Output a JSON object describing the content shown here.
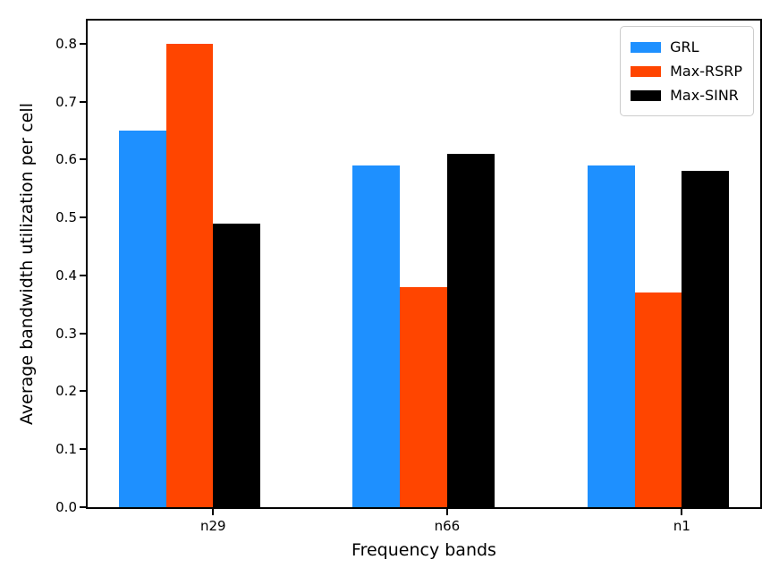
{
  "chart_data": {
    "type": "bar",
    "title": "",
    "xlabel": "Frequency bands",
    "ylabel": "Average bandwidth utilization per cell",
    "categories": [
      "n29",
      "n66",
      "n1"
    ],
    "series": [
      {
        "name": "GRL",
        "color": "#1E90FF",
        "values": [
          0.65,
          0.59,
          0.59
        ]
      },
      {
        "name": "Max-RSRP",
        "color": "#FF4500",
        "values": [
          0.8,
          0.38,
          0.37
        ]
      },
      {
        "name": "Max-SINR",
        "color": "#000000",
        "values": [
          0.49,
          0.61,
          0.58
        ]
      }
    ],
    "yticks": [
      0.0,
      0.1,
      0.2,
      0.3,
      0.4,
      0.5,
      0.6,
      0.7,
      0.8
    ],
    "ylim": [
      0,
      0.84
    ],
    "grid": false,
    "legend": {
      "position": "upper-right",
      "entries": [
        "GRL",
        "Max-RSRP",
        "Max-SINR"
      ]
    }
  }
}
